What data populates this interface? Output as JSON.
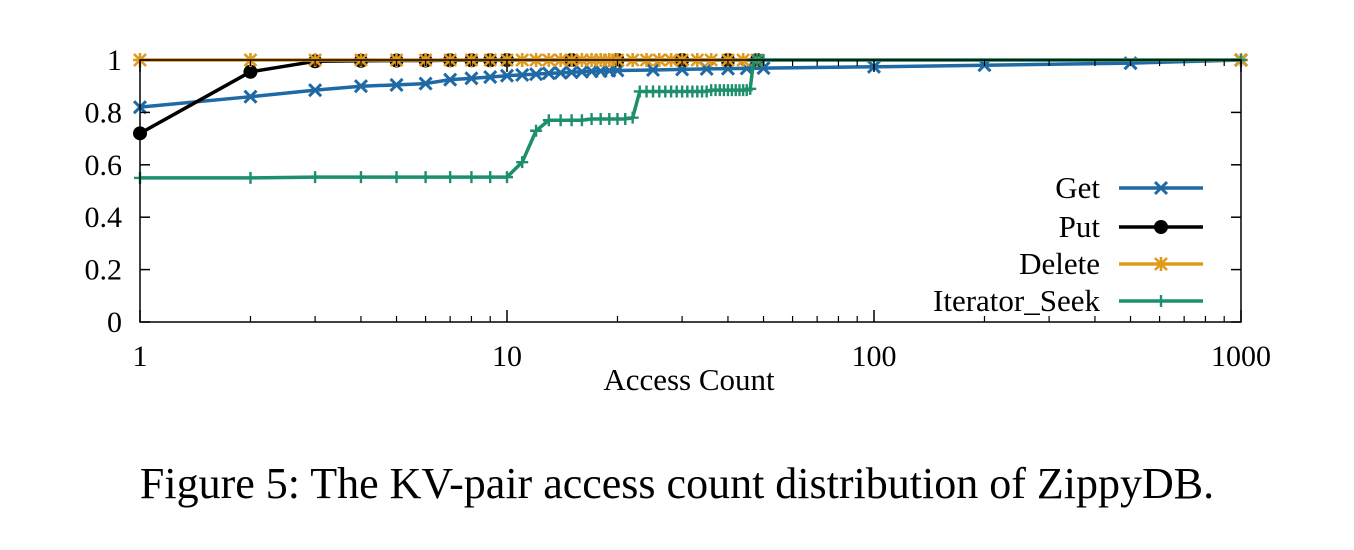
{
  "chart_data": {
    "type": "line",
    "xlabel": "Access Count",
    "ylabel": "",
    "x_scale": "log",
    "xlim": [
      1,
      1000
    ],
    "ylim": [
      0,
      1
    ],
    "x_ticks": [
      "1",
      "10",
      "100",
      "1000"
    ],
    "y_ticks": [
      "0",
      "0.2",
      "0.4",
      "0.6",
      "0.8",
      "1"
    ],
    "legend_position": "right",
    "series": [
      {
        "name": "Get",
        "color": "#1f6aa5",
        "marker": "x",
        "x": [
          1,
          2,
          3,
          4,
          5,
          6,
          7,
          8,
          9,
          10,
          11,
          12,
          13,
          14,
          15,
          16,
          17,
          18,
          19,
          20,
          25,
          30,
          35,
          40,
          45,
          50,
          100,
          200,
          500,
          1000
        ],
        "y": [
          0.82,
          0.86,
          0.885,
          0.9,
          0.905,
          0.91,
          0.925,
          0.93,
          0.935,
          0.94,
          0.943,
          0.946,
          0.949,
          0.951,
          0.953,
          0.955,
          0.957,
          0.958,
          0.959,
          0.96,
          0.962,
          0.964,
          0.966,
          0.967,
          0.968,
          0.969,
          0.974,
          0.98,
          0.988,
          1.0
        ]
      },
      {
        "name": "Put",
        "color": "#000000",
        "marker": "circle",
        "x": [
          1,
          2,
          3,
          4,
          5,
          6,
          7,
          8,
          9,
          10,
          15,
          20,
          30,
          40,
          48
        ],
        "y": [
          0.72,
          0.955,
          0.995,
          0.997,
          0.998,
          0.998,
          0.999,
          0.999,
          0.999,
          1.0,
          1.0,
          1.0,
          1.0,
          1.0,
          1.0
        ]
      },
      {
        "name": "Delete",
        "color": "#e09a1b",
        "marker": "asterisk",
        "x": [
          1,
          2,
          3,
          4,
          5,
          6,
          7,
          8,
          9,
          10,
          11,
          12,
          13,
          14,
          15,
          16,
          17,
          18,
          19,
          20,
          22,
          24,
          26,
          28,
          30,
          33,
          36,
          40,
          44,
          48,
          1000
        ],
        "y": [
          1,
          1,
          1,
          1,
          1,
          1,
          1,
          1,
          1,
          1,
          1,
          1,
          1,
          1,
          1,
          1,
          1,
          1,
          1,
          1,
          1,
          1,
          1,
          1,
          1,
          1,
          1,
          1,
          1,
          1,
          1
        ]
      },
      {
        "name": "Iterator_Seek",
        "color": "#1e8f6e",
        "marker": "plus",
        "x": [
          1,
          2,
          3,
          4,
          5,
          6,
          7,
          8,
          9,
          10,
          11,
          12,
          13,
          14,
          15,
          16,
          17,
          18,
          19,
          20,
          21,
          22,
          23,
          24,
          25,
          26,
          27,
          28,
          29,
          30,
          31,
          32,
          33,
          34,
          35,
          36,
          37,
          38,
          39,
          40,
          41,
          42,
          43,
          44,
          45,
          46,
          47,
          48,
          49,
          50,
          1000
        ],
        "y": [
          0.55,
          0.55,
          0.553,
          0.553,
          0.553,
          0.553,
          0.553,
          0.553,
          0.553,
          0.553,
          0.61,
          0.73,
          0.77,
          0.77,
          0.77,
          0.77,
          0.775,
          0.775,
          0.775,
          0.775,
          0.775,
          0.78,
          0.88,
          0.88,
          0.88,
          0.88,
          0.88,
          0.88,
          0.88,
          0.88,
          0.88,
          0.88,
          0.88,
          0.88,
          0.88,
          0.885,
          0.885,
          0.885,
          0.885,
          0.885,
          0.885,
          0.885,
          0.885,
          0.885,
          0.885,
          0.89,
          1.0,
          1.0,
          1.0,
          1.0,
          1.0
        ]
      }
    ]
  },
  "caption": "Figure 5: The KV-pair access count distribution of ZippyDB."
}
